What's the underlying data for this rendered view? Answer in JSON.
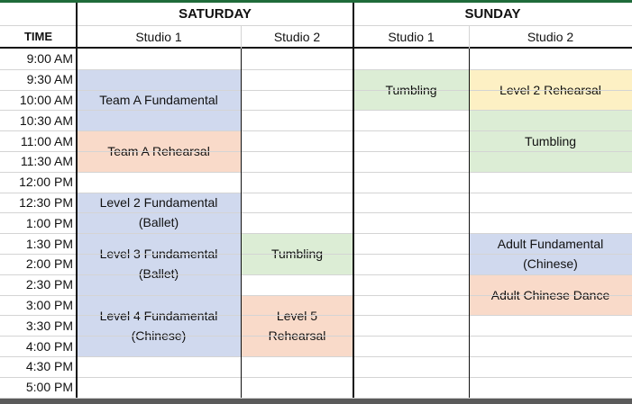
{
  "header": {
    "time_label": "TIME",
    "days": [
      {
        "name": "SATURDAY",
        "studios": [
          "Studio 1",
          "Studio 2"
        ]
      },
      {
        "name": "SUNDAY",
        "studios": [
          "Studio 1",
          "Studio 2"
        ]
      }
    ]
  },
  "times": [
    "9:00 AM",
    "9:30 AM",
    "10:00 AM",
    "10:30 AM",
    "11:00 AM",
    "11:30 AM",
    "12:00 PM",
    "12:30 PM",
    "1:00 PM",
    "1:30 PM",
    "2:00 PM",
    "2:30 PM",
    "3:00 PM",
    "3:30 PM",
    "4:00 PM",
    "4:30 PM",
    "5:00 PM"
  ],
  "colors": {
    "blue": "#d0d9ee",
    "peach": "#f9dac9",
    "green": "#dcedd5",
    "yellow": "#fdf0c4",
    "accent_bar": "#1f6b3a"
  },
  "events": [
    {
      "column": "Saturday Studio 1",
      "start": "9:30 AM",
      "slots": 3,
      "label": "Team A Fundamental",
      "color": "blue"
    },
    {
      "column": "Saturday Studio 1",
      "start": "11:00 AM",
      "slots": 2,
      "label": "Team A Rehearsal",
      "color": "peach"
    },
    {
      "column": "Saturday Studio 1",
      "start": "12:30 PM",
      "slots": 2,
      "label": "Level 2 Fundamental\n(Ballet)",
      "color": "blue"
    },
    {
      "column": "Saturday Studio 1",
      "start": "1:30 PM",
      "slots": 3,
      "label": "Level 3  Fundamental\n(Ballet)",
      "color": "blue"
    },
    {
      "column": "Saturday Studio 1",
      "start": "3:00 PM",
      "slots": 3,
      "label": "Level 4 Fundamental\n(Chinese)",
      "color": "blue"
    },
    {
      "column": "Saturday Studio 2",
      "start": "1:30 PM",
      "slots": 2,
      "label": "Tumbling",
      "color": "green"
    },
    {
      "column": "Saturday Studio 2",
      "start": "3:00 PM",
      "slots": 3,
      "label": "Level 5\nRehearsal",
      "color": "peach"
    },
    {
      "column": "Sunday Studio 1",
      "start": "9:30 AM",
      "slots": 2,
      "label": "Tumbling",
      "color": "green"
    },
    {
      "column": "Sunday Studio 2",
      "start": "9:30 AM",
      "slots": 2,
      "label": "Level 2 Rehearsal",
      "color": "yellow"
    },
    {
      "column": "Sunday Studio 2",
      "start": "10:30 AM",
      "slots": 3,
      "label": "Tumbling",
      "color": "green"
    },
    {
      "column": "Sunday Studio 2",
      "start": "1:30 PM",
      "slots": 2,
      "label": "Adult Fundamental\n(Chinese)",
      "color": "blue"
    },
    {
      "column": "Sunday Studio 2",
      "start": "2:30 PM",
      "slots": 2,
      "label": "Adult Chinese Dance",
      "color": "peach"
    }
  ]
}
